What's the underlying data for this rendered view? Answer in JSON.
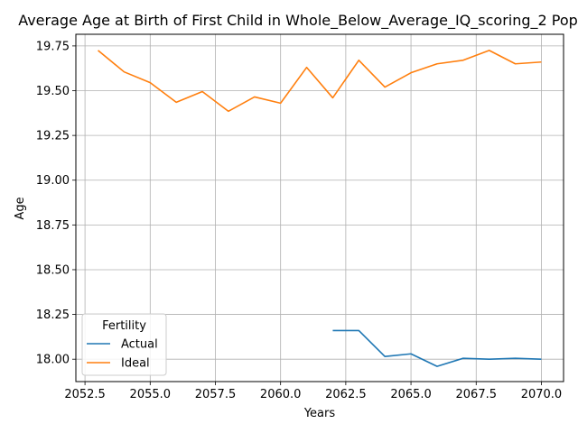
{
  "chart_data": {
    "type": "line",
    "title": "Average Age at Birth of First Child in Whole_Below_Average_IQ_scoring_2 Pop",
    "xlabel": "Years",
    "ylabel": "Age",
    "xlim": [
      2052.15,
      2070.85
    ],
    "ylim": [
      17.875,
      19.815
    ],
    "xticks": [
      2052.5,
      2055.0,
      2057.5,
      2060.0,
      2062.5,
      2065.0,
      2067.5,
      2070.0
    ],
    "xtick_labels": [
      "2052.5",
      "2055.0",
      "2057.5",
      "2060.0",
      "2062.5",
      "2065.0",
      "2067.5",
      "2070.0"
    ],
    "yticks": [
      18.0,
      18.25,
      18.5,
      18.75,
      19.0,
      19.25,
      19.5,
      19.75
    ],
    "ytick_labels": [
      "18.00",
      "18.25",
      "18.50",
      "18.75",
      "19.00",
      "19.25",
      "19.50",
      "19.75"
    ],
    "grid": true,
    "legend": {
      "title": "Fertility",
      "placement": "lower-left"
    },
    "series": [
      {
        "name": "Actual",
        "color": "#1f77b4",
        "x": [
          2062,
          2063,
          2064,
          2065,
          2066,
          2067,
          2068,
          2069,
          2070
        ],
        "values": [
          18.16,
          18.16,
          18.015,
          18.03,
          17.96,
          18.005,
          18.0,
          18.005,
          18.0
        ]
      },
      {
        "name": "Ideal",
        "color": "#ff7f0e",
        "x": [
          2053,
          2054,
          2055,
          2056,
          2057,
          2058,
          2059,
          2060,
          2061,
          2062,
          2063,
          2064,
          2065,
          2066,
          2067,
          2068,
          2069,
          2070
        ],
        "values": [
          19.725,
          19.605,
          19.545,
          19.435,
          19.495,
          19.385,
          19.465,
          19.43,
          19.63,
          19.46,
          19.67,
          19.52,
          19.6,
          19.65,
          19.67,
          19.725,
          19.65,
          19.66
        ]
      }
    ]
  }
}
